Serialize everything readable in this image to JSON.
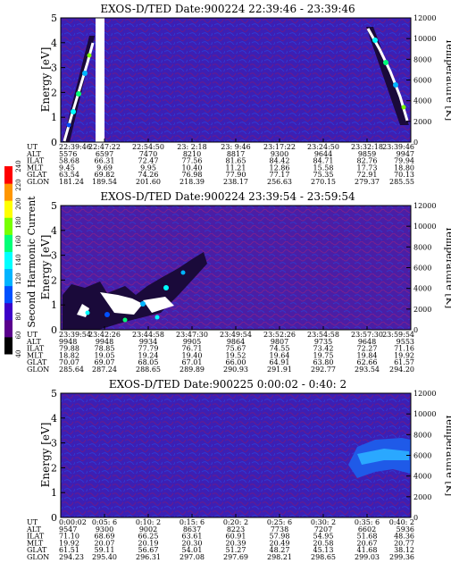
{
  "colorbar": {
    "label": "Second Harmonic Current",
    "ticks": [
      "40",
      "60",
      "80",
      "100",
      "120",
      "140",
      "160",
      "180",
      "200",
      "220",
      "240"
    ],
    "colors": [
      "#000000",
      "#5a008c",
      "#3c00c8",
      "#0050ff",
      "#00b4ff",
      "#00ffff",
      "#00ff78",
      "#78ff00",
      "#ffff00",
      "#ff9600",
      "#ff0000"
    ]
  },
  "row_labels": [
    "UT",
    "ALT",
    "ILAT",
    "MLT",
    "GLAT",
    "GLON"
  ],
  "chart_data": [
    {
      "type": "heatmap",
      "title": "EXOS-D/TED   Date:900224  22:39:46 - 23:39:46",
      "ylabel": "Energy [eV]",
      "ylabel2": "Temperature [K]",
      "ylim": [
        0,
        5
      ],
      "y2lim": [
        0,
        12000
      ],
      "yticks": [
        "0",
        "1",
        "2",
        "3",
        "4",
        "5"
      ],
      "y2ticks": [
        "0",
        "2000",
        "4000",
        "6000",
        "8000",
        "10000",
        "12000"
      ],
      "orbit_table": [
        [
          "22:39:46",
          "5576",
          "58.68",
          "9.45",
          "63.54",
          "181.24"
        ],
        [
          "22:47:22",
          "6597",
          "66.31",
          "9.69",
          "69.82",
          "189.54"
        ],
        [
          "22:54:50",
          "7470",
          "72.47",
          "9.95",
          "74.26",
          "201.60"
        ],
        [
          "23: 2:18",
          "8210",
          "77.56",
          "10.40",
          "76.98",
          "218.39"
        ],
        [
          "23: 9:46",
          "8817",
          "81.65",
          "11.21",
          "77.90",
          "238.17"
        ],
        [
          "23:17:22",
          "9300",
          "84.42",
          "12.86",
          "77.17",
          "256.63"
        ],
        [
          "23:24:50",
          "9644",
          "84.71",
          "15.58",
          "75.35",
          "270.15"
        ],
        [
          "23:32:18",
          "9859",
          "82.76",
          "17.73",
          "72.91",
          "279.37"
        ],
        [
          "23:39:46",
          "9947",
          "79.94",
          "18.80",
          "70.13",
          "285.55"
        ]
      ]
    },
    {
      "type": "heatmap",
      "title": "EXOS-D/TED   Date:900224  23:39:54 - 23:59:54",
      "ylabel": "Energy [eV]",
      "ylabel2": "Temperature [K]",
      "ylim": [
        0,
        5
      ],
      "y2lim": [
        0,
        12000
      ],
      "yticks": [
        "0",
        "1",
        "2",
        "3",
        "4",
        "5"
      ],
      "y2ticks": [
        "0",
        "2000",
        "4000",
        "6000",
        "8000",
        "10000",
        "12000"
      ],
      "orbit_table": [
        [
          "23:39:54",
          "9948",
          "79.88",
          "18.82",
          "70.07",
          "285.64"
        ],
        [
          "23:42:26",
          "9948",
          "78.85",
          "19.05",
          "69.07",
          "287.24"
        ],
        [
          "23:44:58",
          "9934",
          "77.79",
          "19.24",
          "68.05",
          "288.65"
        ],
        [
          "23:47:30",
          "9905",
          "76.71",
          "19.40",
          "67.01",
          "289.89"
        ],
        [
          "23:49:54",
          "9864",
          "75.67",
          "19.52",
          "66.00",
          "290.93"
        ],
        [
          "23:52:26",
          "9807",
          "74.55",
          "19.64",
          "64.91",
          "291.91"
        ],
        [
          "23:54:58",
          "9735",
          "73.42",
          "19.75",
          "63.80",
          "292.77"
        ],
        [
          "23:57:30",
          "9648",
          "72.27",
          "19.84",
          "62.66",
          "293.54"
        ],
        [
          "23:59:54",
          "9553",
          "71.16",
          "19.92",
          "61.57",
          "294.20"
        ]
      ]
    },
    {
      "type": "heatmap",
      "title": "EXOS-D/TED   Date:900225  0:00:02 - 0:40: 2",
      "ylabel": "Energy [eV]",
      "ylabel2": "Temperature [K]",
      "ylim": [
        0,
        5
      ],
      "y2lim": [
        0,
        12000
      ],
      "yticks": [
        "0",
        "1",
        "2",
        "3",
        "4",
        "5"
      ],
      "y2ticks": [
        "0",
        "2000",
        "4000",
        "6000",
        "8000",
        "10000",
        "12000"
      ],
      "orbit_table": [
        [
          "0:00:02",
          "9547",
          "71.10",
          "19.92",
          "61.51",
          "294.23"
        ],
        [
          "0:05: 6",
          "9300",
          "68.69",
          "20.07",
          "59.11",
          "295.40"
        ],
        [
          "0:10: 2",
          "9002",
          "66.25",
          "20.19",
          "56.67",
          "296.31"
        ],
        [
          "0:15: 6",
          "8637",
          "63.61",
          "20.30",
          "54.01",
          "297.08"
        ],
        [
          "0:20: 2",
          "8223",
          "60.91",
          "20.39",
          "51.27",
          "297.69"
        ],
        [
          "0:25: 6",
          "7738",
          "57.98",
          "20.49",
          "48.27",
          "298.21"
        ],
        [
          "0:30: 2",
          "7207",
          "54.95",
          "20.58",
          "45.13",
          "298.65"
        ],
        [
          "0:35: 6",
          "6602",
          "51.68",
          "20.67",
          "41.68",
          "299.03"
        ],
        [
          "0:40: 2",
          "5936",
          "48.36",
          "20.77",
          "38.12",
          "299.36"
        ]
      ]
    }
  ]
}
